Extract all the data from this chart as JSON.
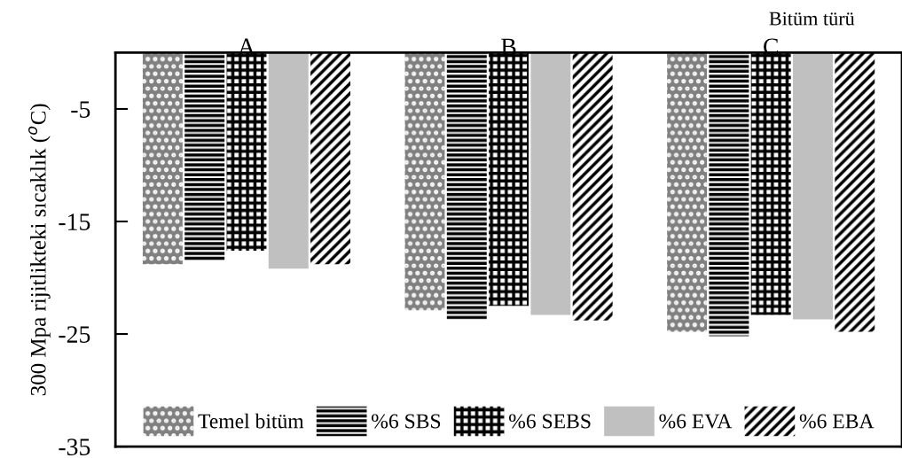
{
  "chart_data": {
    "type": "bar",
    "xlabel": "Bitüm türü",
    "ylabel": "300 Mpa rijitlikteki sıcaklık ($^{o}$C)",
    "categories": [
      "A",
      "B",
      "C"
    ],
    "series": [
      {
        "name": "Temel bitüm",
        "color": "#808080",
        "values": [
          -18.8,
          -22.9,
          -24.8
        ]
      },
      {
        "name": "%6 SBS",
        "color": "#000000",
        "values": [
          -18.5,
          -23.7,
          -25.2
        ]
      },
      {
        "name": "%6 SEBS",
        "color": "#000000",
        "values": [
          -17.6,
          -22.5,
          -23.3
        ]
      },
      {
        "name": "%6 EVA",
        "color": "#c0c0c0",
        "values": [
          -19.2,
          -23.3,
          -23.7
        ]
      },
      {
        "name": "%6 EBA",
        "color": "#000000",
        "values": [
          -18.8,
          -23.8,
          -24.8
        ]
      }
    ],
    "ylim": [
      -35,
      0
    ],
    "yticks": [
      -5,
      -15,
      -25,
      -35
    ],
    "grid": false,
    "legend": "bottom"
  }
}
